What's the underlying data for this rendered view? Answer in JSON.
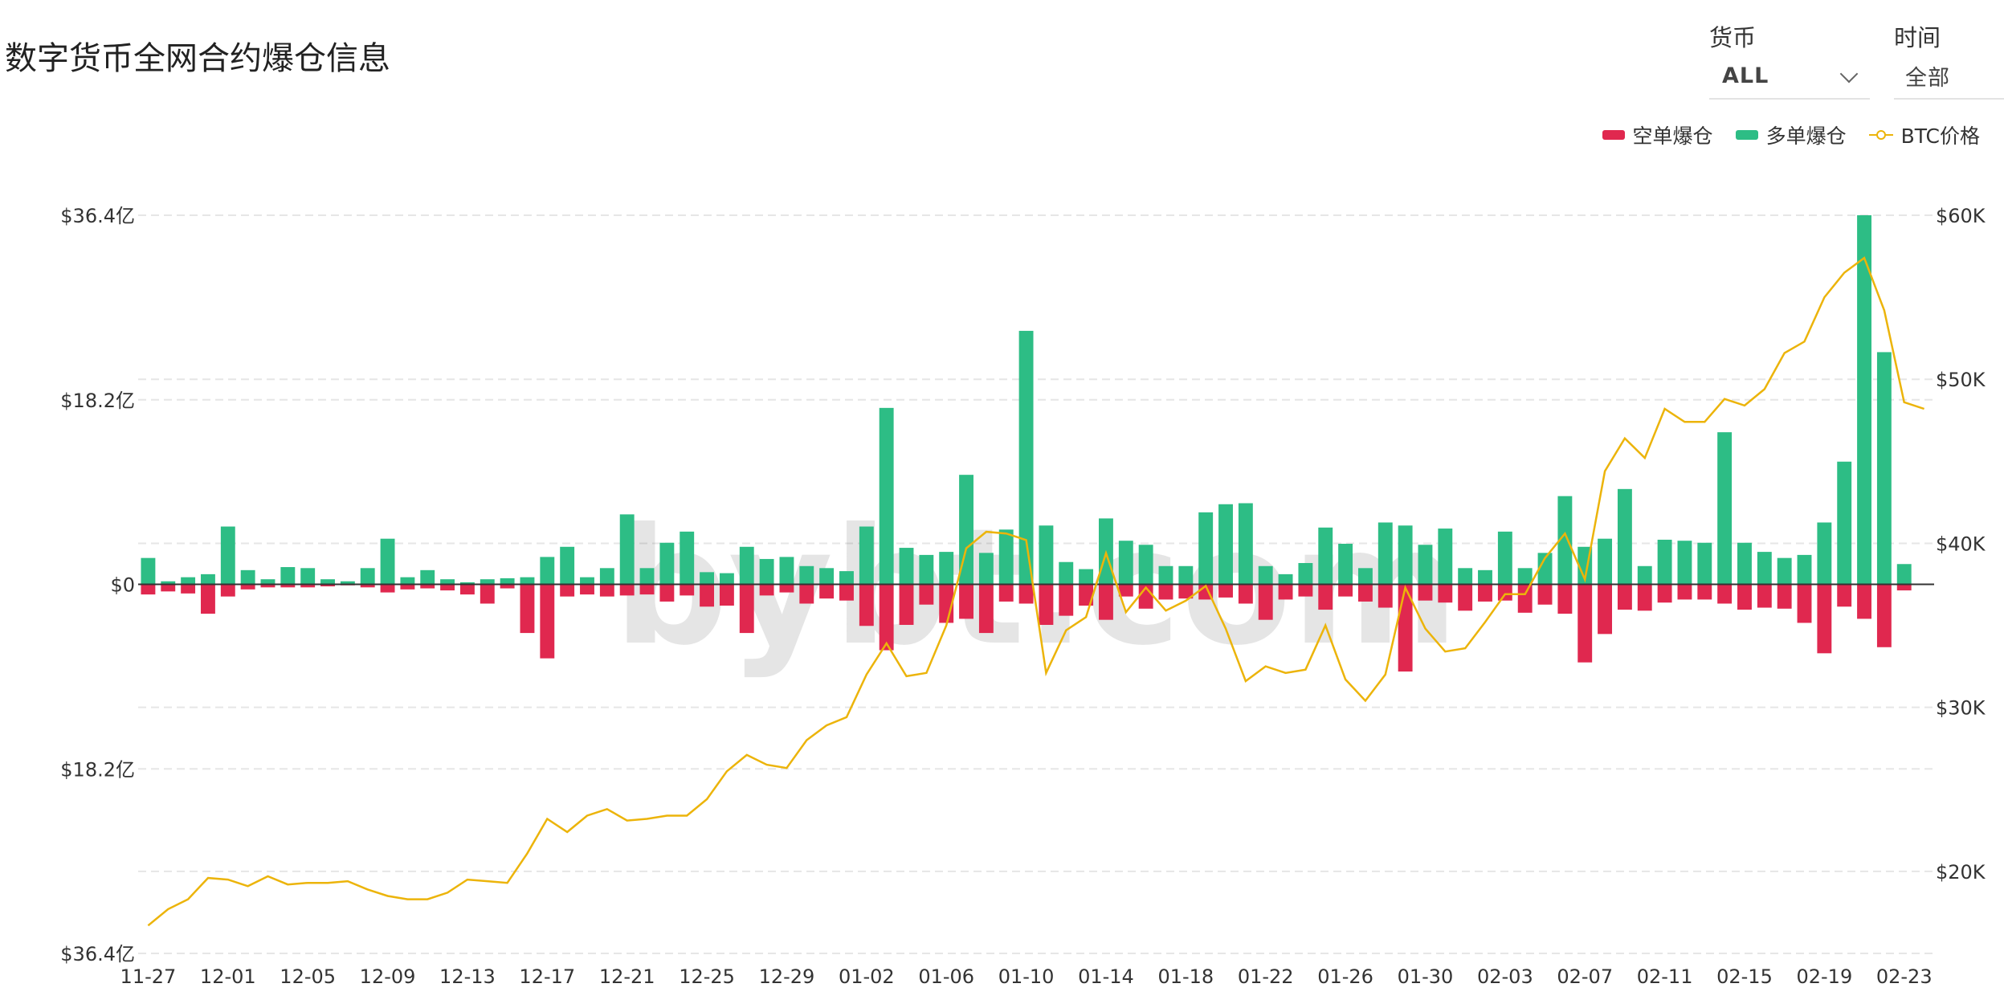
{
  "title": "数字货币全网合约爆仓信息",
  "filters": {
    "currency": {
      "label": "货币",
      "value": "ALL"
    },
    "time": {
      "label": "时间",
      "value": "全部"
    }
  },
  "watermark": "bybt.com",
  "colors": {
    "short": "#e0284f",
    "long": "#2dbd85",
    "btc": "#ecb40a",
    "grid": "#e6e6e6",
    "zero": "#333333"
  },
  "chart_data": {
    "type": "bar",
    "legend": [
      "空单爆仓",
      "多单爆仓",
      "BTC价格"
    ],
    "legend_position": "top-right",
    "y_left": {
      "range": [
        -36.4,
        36.4
      ],
      "unit": "亿",
      "ticks": [
        {
          "v": 36.4,
          "label": "$36.4亿"
        },
        {
          "v": 18.2,
          "label": "$18.2亿"
        },
        {
          "v": 0,
          "label": "$0"
        },
        {
          "v": -18.2,
          "label": "$18.2亿"
        },
        {
          "v": -36.4,
          "label": "$36.4亿"
        }
      ]
    },
    "y_right": {
      "range": [
        15000,
        60000
      ],
      "ticks": [
        {
          "v": 60000,
          "label": "$60K"
        },
        {
          "v": 50000,
          "label": "$50K"
        },
        {
          "v": 40000,
          "label": "$40K"
        },
        {
          "v": 30000,
          "label": "$30K"
        },
        {
          "v": 20000,
          "label": "$20K"
        }
      ]
    },
    "x_tick_labels": [
      "11-27",
      "12-01",
      "12-05",
      "12-09",
      "12-13",
      "12-17",
      "12-21",
      "12-25",
      "12-29",
      "01-02",
      "01-06",
      "01-10",
      "01-14",
      "01-18",
      "01-22",
      "01-26",
      "01-30",
      "02-03",
      "02-07",
      "02-11",
      "02-15",
      "02-19",
      "02-23"
    ],
    "x_tick_step": 4,
    "dates": [
      "11-27",
      "11-28",
      "11-29",
      "11-30",
      "12-01",
      "12-02",
      "12-03",
      "12-04",
      "12-05",
      "12-06",
      "12-07",
      "12-08",
      "12-09",
      "12-10",
      "12-11",
      "12-12",
      "12-13",
      "12-14",
      "12-15",
      "12-16",
      "12-17",
      "12-18",
      "12-19",
      "12-20",
      "12-21",
      "12-22",
      "12-23",
      "12-24",
      "12-25",
      "12-26",
      "12-27",
      "12-28",
      "12-29",
      "12-30",
      "12-31",
      "01-01",
      "01-02",
      "01-03",
      "01-04",
      "01-05",
      "01-06",
      "01-07",
      "01-08",
      "01-09",
      "01-10",
      "01-11",
      "01-12",
      "01-13",
      "01-14",
      "01-15",
      "01-16",
      "01-17",
      "01-18",
      "01-19",
      "01-20",
      "01-21",
      "01-22",
      "01-23",
      "01-24",
      "01-25",
      "01-26",
      "01-27",
      "01-28",
      "01-29",
      "01-30",
      "01-31",
      "02-01",
      "02-02",
      "02-03",
      "02-04",
      "02-05",
      "02-06",
      "02-07",
      "02-08",
      "02-09",
      "02-10",
      "02-11",
      "02-12",
      "02-13",
      "02-14",
      "02-15",
      "02-16",
      "02-17",
      "02-18",
      "02-19",
      "02-20",
      "02-21",
      "02-22",
      "02-23",
      "02-24"
    ],
    "series": [
      {
        "name": "多单爆仓",
        "unit": "亿美元",
        "values": [
          2.6,
          0.3,
          0.7,
          1.0,
          5.7,
          1.4,
          0.5,
          1.7,
          1.6,
          0.5,
          0.3,
          1.6,
          4.5,
          0.7,
          1.4,
          0.5,
          0.2,
          0.5,
          0.6,
          0.7,
          2.7,
          3.7,
          0.7,
          1.6,
          6.9,
          1.6,
          4.1,
          5.2,
          1.2,
          1.1,
          3.7,
          2.5,
          2.7,
          1.8,
          1.6,
          1.3,
          5.7,
          17.4,
          3.6,
          2.9,
          3.2,
          10.8,
          3.1,
          5.4,
          25.0,
          5.8,
          2.2,
          1.5,
          6.5,
          4.3,
          3.9,
          1.8,
          1.8,
          7.1,
          7.9,
          8.0,
          1.8,
          1.0,
          2.1,
          5.6,
          4.0,
          1.6,
          6.1,
          5.8,
          3.9,
          5.5,
          1.6,
          1.4,
          5.2,
          1.6,
          3.1,
          8.7,
          3.7,
          4.5,
          9.4,
          1.8,
          4.4,
          4.3,
          4.1,
          15.0,
          4.1,
          3.2,
          2.6,
          2.9,
          6.1,
          12.1,
          36.4,
          22.9,
          2.0,
          0.0
        ]
      },
      {
        "name": "空单爆仓",
        "unit": "亿美元",
        "values": [
          -1.0,
          -0.7,
          -0.9,
          -2.9,
          -1.2,
          -0.5,
          -0.3,
          -0.3,
          -0.3,
          -0.2,
          -0.1,
          -0.3,
          -0.8,
          -0.5,
          -0.4,
          -0.6,
          -1.0,
          -1.9,
          -0.4,
          -4.8,
          -7.3,
          -1.2,
          -1.0,
          -1.2,
          -1.1,
          -1.0,
          -1.7,
          -1.1,
          -2.2,
          -2.1,
          -4.8,
          -1.1,
          -0.8,
          -1.9,
          -1.4,
          -1.6,
          -4.1,
          -6.5,
          -4.0,
          -2.0,
          -3.8,
          -3.4,
          -4.8,
          -1.7,
          -1.9,
          -4.0,
          -3.1,
          -2.1,
          -3.5,
          -1.2,
          -2.4,
          -1.5,
          -1.4,
          -1.5,
          -1.3,
          -1.9,
          -3.5,
          -1.5,
          -1.2,
          -2.5,
          -1.2,
          -1.7,
          -2.3,
          -8.6,
          -1.6,
          -1.8,
          -2.6,
          -1.7,
          -1.6,
          -2.8,
          -2.0,
          -2.9,
          -7.7,
          -4.9,
          -2.5,
          -2.6,
          -1.8,
          -1.5,
          -1.5,
          -1.9,
          -2.5,
          -2.3,
          -2.4,
          -3.8,
          -6.8,
          -2.2,
          -3.4,
          -6.2,
          -0.6,
          0.0
        ]
      },
      {
        "name": "BTC价格",
        "unit": "USD",
        "values": [
          16700,
          17700,
          18300,
          19600,
          19500,
          19100,
          19700,
          19200,
          19300,
          19300,
          19400,
          18900,
          18500,
          18300,
          18300,
          18700,
          19500,
          19400,
          19300,
          21100,
          23200,
          22400,
          23400,
          23800,
          23100,
          23200,
          23400,
          23400,
          24400,
          26100,
          27100,
          26500,
          26300,
          28000,
          28900,
          29400,
          32000,
          33900,
          31900,
          32100,
          35000,
          39700,
          40700,
          40600,
          40200,
          32100,
          34700,
          35500,
          39400,
          35800,
          37300,
          35900,
          36500,
          37400,
          34800,
          31600,
          32500,
          32100,
          32300,
          35000,
          31700,
          30400,
          32000,
          37300,
          34800,
          33400,
          33600,
          35200,
          36900,
          36900,
          39100,
          40600,
          37800,
          44400,
          46400,
          45200,
          48200,
          47400,
          47400,
          48800,
          48400,
          49400,
          51600,
          52300,
          55000,
          56500,
          57400,
          54200,
          48600,
          48200
        ]
      }
    ]
  }
}
